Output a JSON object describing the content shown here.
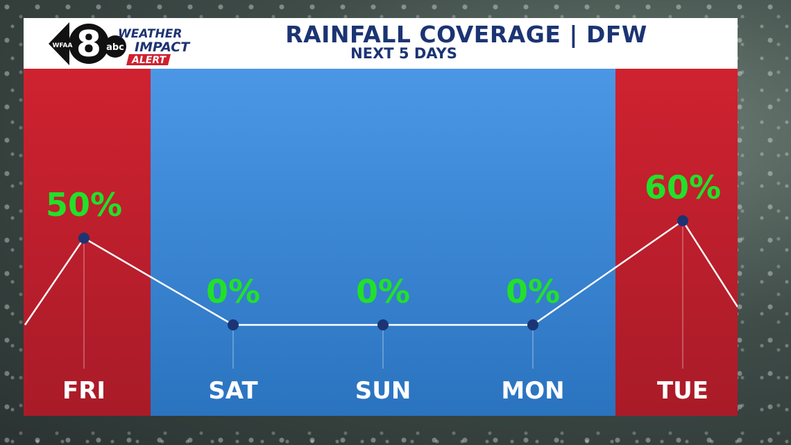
{
  "header": {
    "logo_text": "WFAA",
    "logo_number": "8",
    "logo_network": "abc",
    "alert_line1": "WEATHER",
    "alert_line2": "IMPACT",
    "alert_line3": "ALERT",
    "title": "RAINFALL COVERAGE | DFW",
    "subtitle": "NEXT 5 DAYS"
  },
  "colors": {
    "brand_blue": "#1c3473",
    "alert_red": "#c8202f",
    "sky_blue": "#3d8ad8",
    "value_green": "#22e02a"
  },
  "chart_data": {
    "type": "line",
    "title": "RAINFALL COVERAGE | DFW",
    "subtitle": "NEXT 5 DAYS",
    "categories": [
      "FRI",
      "SAT",
      "SUN",
      "MON",
      "TUE"
    ],
    "values": [
      50,
      0,
      0,
      0,
      60
    ],
    "labels": [
      "50%",
      "0%",
      "0%",
      "0%",
      "60%"
    ],
    "highlighted": [
      "FRI",
      "TUE"
    ],
    "ylim": [
      0,
      100
    ],
    "grid": false,
    "legend": "none"
  }
}
